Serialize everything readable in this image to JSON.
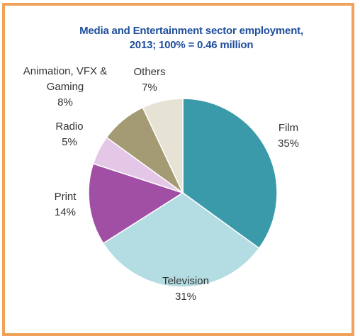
{
  "chart_data": {
    "type": "pie",
    "title": "Media and Entertainment sector employment,",
    "subtitle": "2013; 100% = 0.46 million",
    "slices": [
      {
        "label": "Film",
        "value": 35,
        "value_label": "35%",
        "color": "#3a9aaa"
      },
      {
        "label": "Television",
        "value": 31,
        "value_label": "31%",
        "color": "#b3dde3"
      },
      {
        "label": "Print",
        "value": 14,
        "value_label": "14%",
        "color": "#a14fa5"
      },
      {
        "label": "Radio",
        "value": 5,
        "value_label": "5%",
        "color": "#e4c7e6"
      },
      {
        "label": "Animation, VFX & Gaming",
        "label_lines": [
          "Animation, VFX &",
          "Gaming"
        ],
        "value": 8,
        "value_label": "8%",
        "color": "#a49a74"
      },
      {
        "label": "Others",
        "value": 7,
        "value_label": "7%",
        "color": "#e6e3d4"
      }
    ]
  }
}
